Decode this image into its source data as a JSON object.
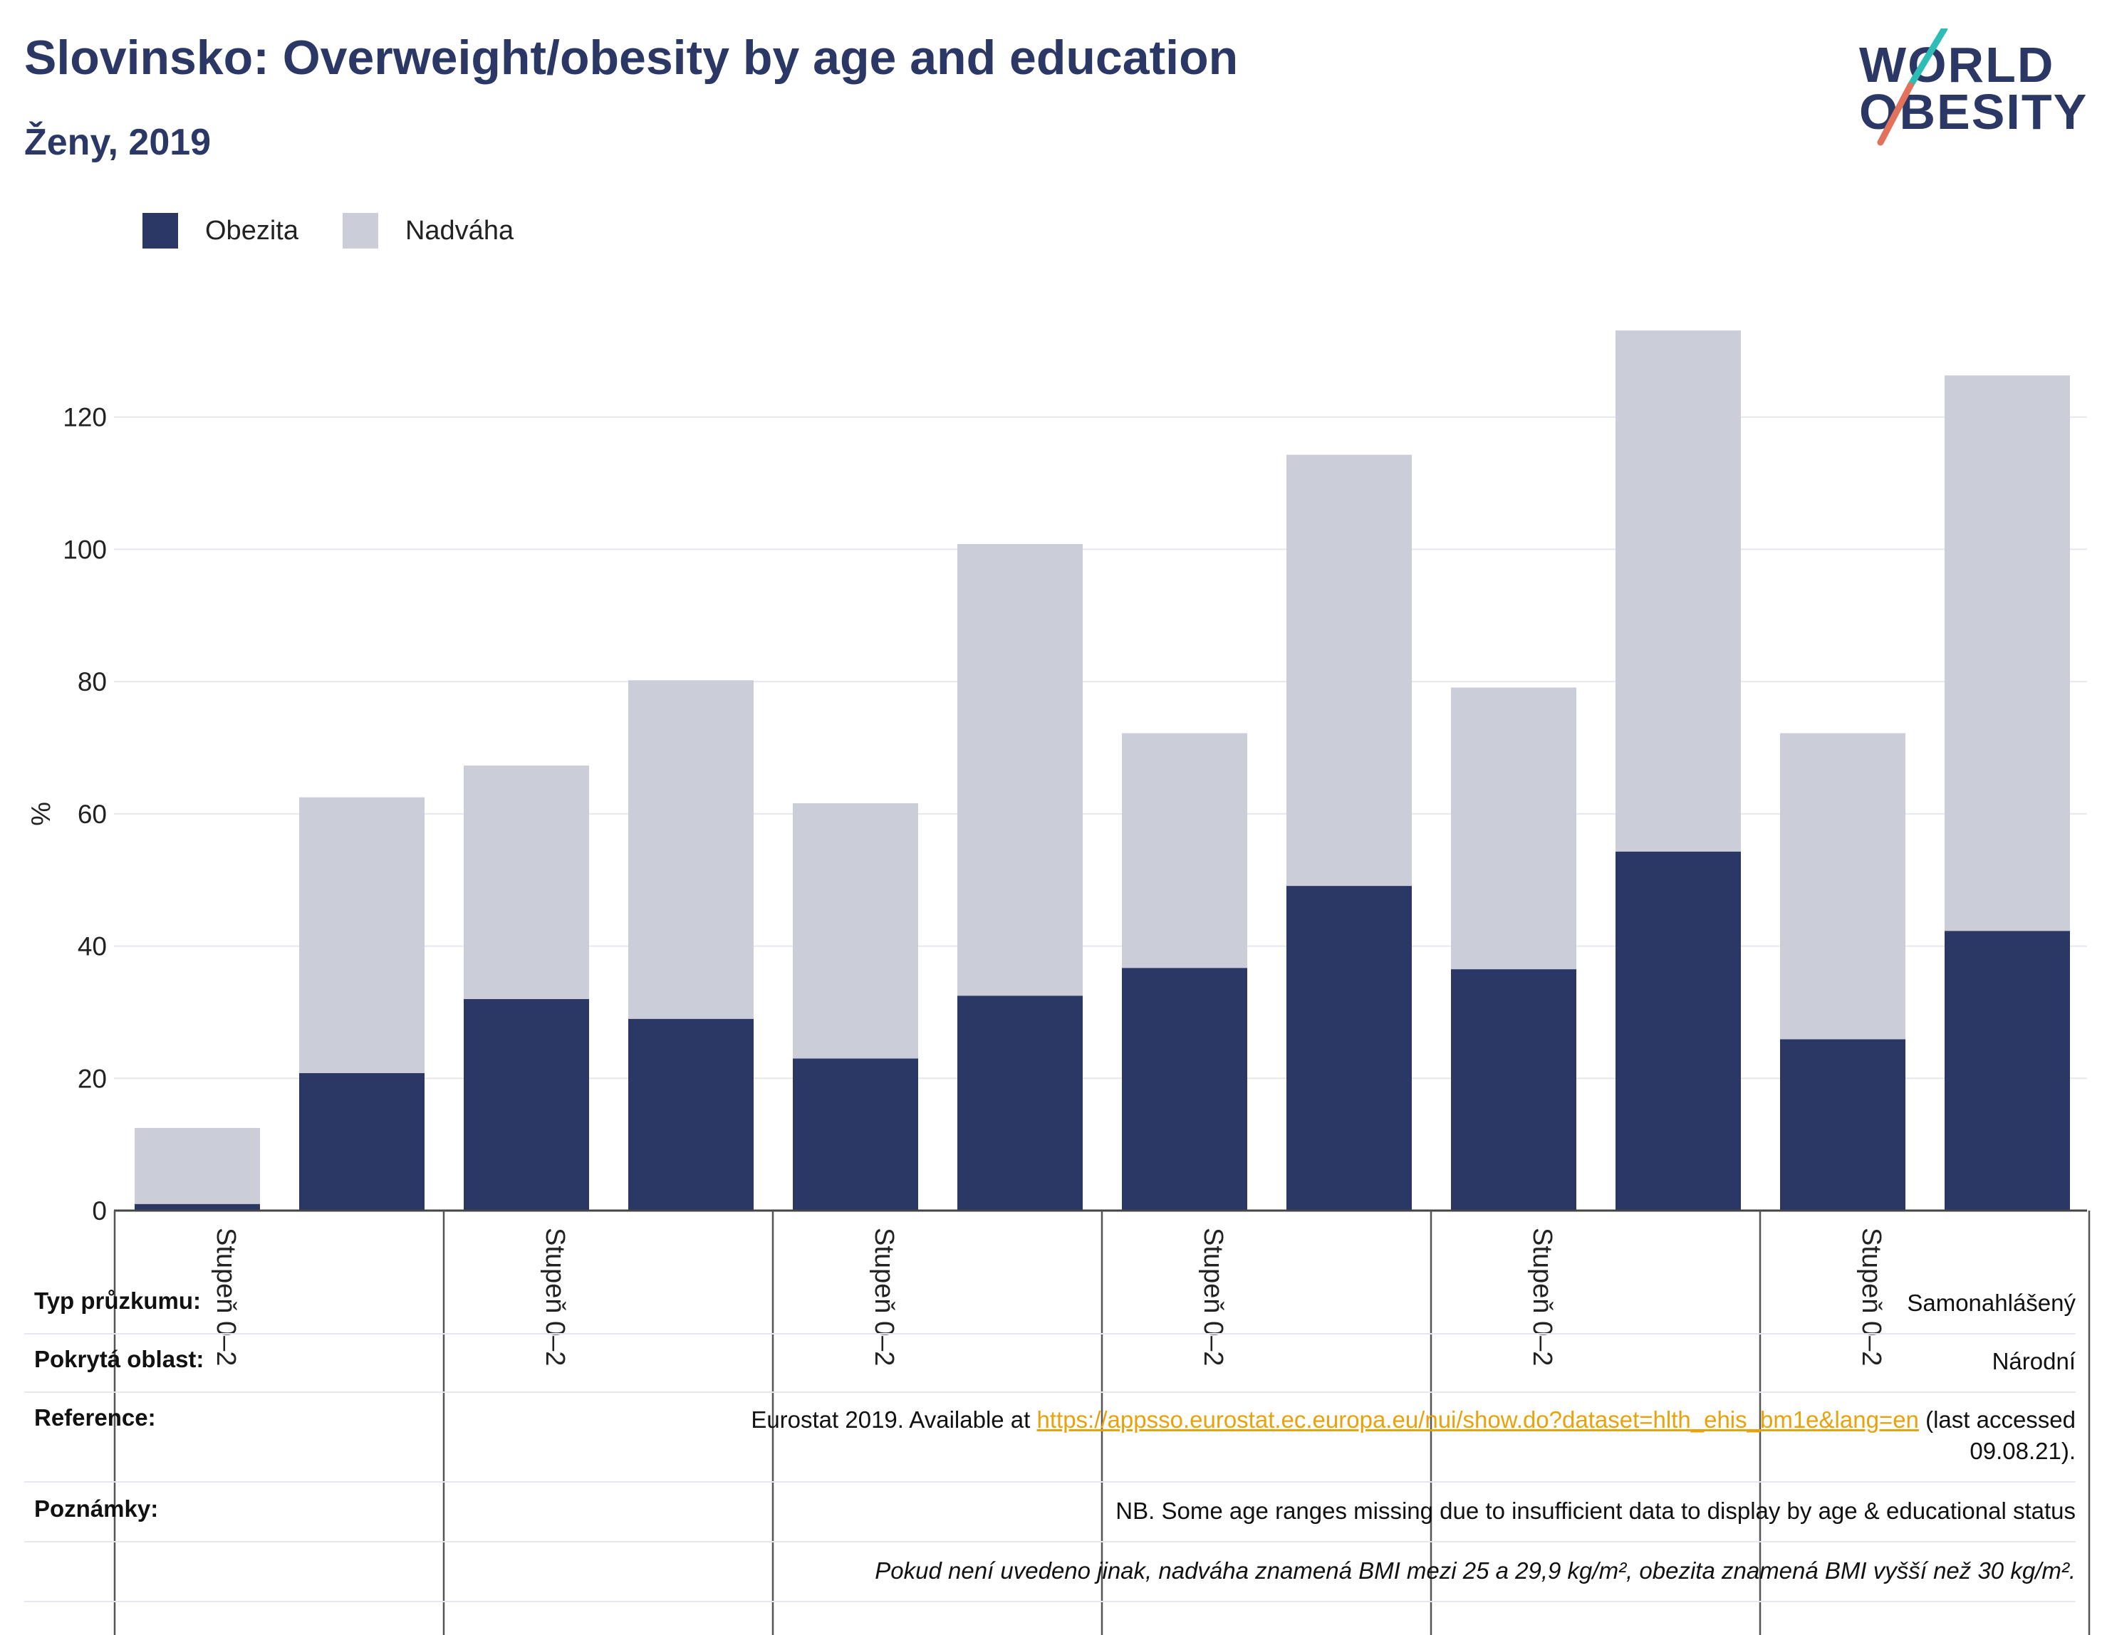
{
  "header": {
    "title": "Slovinsko: Overweight/obesity by age and education",
    "subtitle": "Ženy, 2019"
  },
  "logo": {
    "line1": "WORLD",
    "line2": "OBESITY",
    "accent_colors": [
      "#2dbdb6",
      "#e2725b"
    ]
  },
  "legend": {
    "items": [
      {
        "label": "Obezita",
        "color": "#2b3765"
      },
      {
        "label": "Nadváha",
        "color": "#cbcdd8"
      }
    ]
  },
  "chart_data": {
    "type": "bar",
    "stacked": true,
    "ylabel": "%",
    "ylim": [
      0,
      140
    ],
    "yticks": [
      0,
      20,
      40,
      60,
      80,
      100,
      120
    ],
    "grid": true,
    "legend_position": "top-left",
    "group_labels": [
      "Stupeň 0–2",
      "Stupeň 0–2",
      "Stupeň 0–2",
      "Stupeň 0–2",
      "Stupeň 0–2",
      "Stupeň 0–2"
    ],
    "series": [
      {
        "name": "Obezita",
        "color": "#2b3765",
        "values": [
          1.0,
          20.8,
          32.0,
          29.0,
          23.0,
          32.5,
          36.7,
          49.1,
          36.5,
          54.3,
          25.9,
          42.3
        ]
      },
      {
        "name": "Nadváha",
        "color": "#cbcdd8",
        "values": [
          11.5,
          41.7,
          35.3,
          51.2,
          38.6,
          68.3,
          35.5,
          65.2,
          42.6,
          78.8,
          46.3,
          84.0
        ]
      }
    ]
  },
  "info_table": {
    "rows": [
      {
        "label": "Typ průzkumu:",
        "value": "Samonahlášený"
      },
      {
        "label": "Pokrytá oblast:",
        "value": "Národní"
      },
      {
        "label": "Reference:",
        "value_prefix": "Eurostat 2019. Available at ",
        "link": "https://appsso.eurostat.ec.europa.eu/nui/show.do?dataset=hlth_ehis_bm1e&lang=en",
        "value_suffix": " (last accessed",
        "value_line2": "09.08.21)."
      },
      {
        "label": "Poznámky:",
        "value": "NB. Some age ranges missing due to insufficient data to display by age & educational status"
      },
      {
        "label": "",
        "value": "Pokud není uvedeno jinak, nadváha znamená BMI mezi 25 a 29,9 kg/m², obezita znamená BMI vyšší než 30 kg/m²."
      }
    ]
  }
}
